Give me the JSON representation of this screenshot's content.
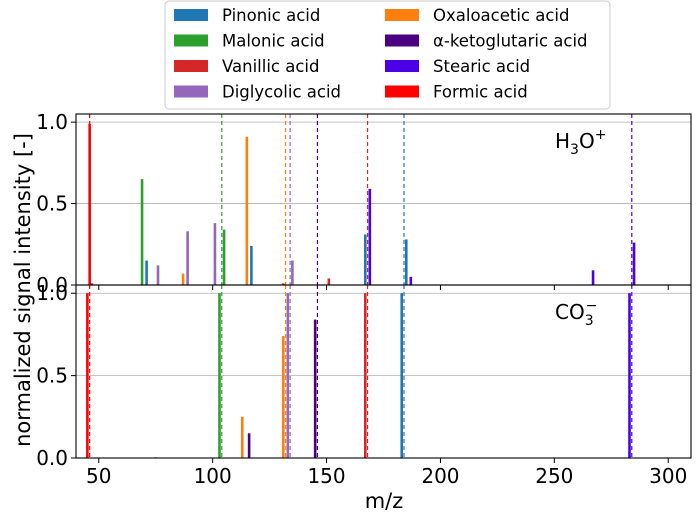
{
  "chart_data": {
    "type": "bar",
    "xlabel": "m/z",
    "ylabel": "normalized signal intensity [-]",
    "xlim": [
      40,
      310
    ],
    "x_ticks": [
      50,
      100,
      150,
      200,
      250,
      300
    ],
    "ylim": [
      0,
      1.05
    ],
    "y_ticks": [
      0.0,
      0.5,
      1.0
    ],
    "y_tick_labels": [
      "0.0",
      "0.5",
      "1.0"
    ],
    "grid": "horizontal",
    "legend": {
      "placement": "top-center",
      "columns": 2
    },
    "series": [
      {
        "name": "Pinonic acid",
        "color": "#1f77b4",
        "marker_mz": 184
      },
      {
        "name": "Malonic acid",
        "color": "#2ca02c",
        "marker_mz": 104
      },
      {
        "name": "Vanillic acid",
        "color": "#d62728",
        "marker_mz": 168
      },
      {
        "name": "Diglycolic acid",
        "color": "#9467bd",
        "marker_mz": 134
      },
      {
        "name": "Oxaloacetic acid",
        "color": "#ff7f0e",
        "marker_mz": 132
      },
      {
        "name": "α-ketoglutaric acid",
        "color": "#4b0082",
        "marker_mz": 146
      },
      {
        "name": "Stearic acid",
        "color": "#4b00e6",
        "marker_mz": 284
      },
      {
        "name": "Formic acid",
        "color": "#ff0000",
        "marker_mz": 46
      }
    ],
    "panels": [
      {
        "reagent_main": "H",
        "reagent_sub": "3",
        "reagent_tail": "O",
        "reagent_sup": "+",
        "bars": [
          {
            "series": "Formic acid",
            "mz": 46,
            "value": 0.99
          },
          {
            "series": "Formic acid",
            "mz": 47,
            "value": 0.01
          },
          {
            "series": "Malonic acid",
            "mz": 69,
            "value": 0.65
          },
          {
            "series": "Pinonic acid",
            "mz": 71,
            "value": 0.15
          },
          {
            "series": "Diglycolic acid",
            "mz": 76,
            "value": 0.12
          },
          {
            "series": "Oxaloacetic acid",
            "mz": 87,
            "value": 0.07
          },
          {
            "series": "Diglycolic acid",
            "mz": 89,
            "value": 0.33
          },
          {
            "series": "Diglycolic acid",
            "mz": 101,
            "value": 0.38
          },
          {
            "series": "Malonic acid",
            "mz": 105,
            "value": 0.34
          },
          {
            "series": "Oxaloacetic acid",
            "mz": 115,
            "value": 0.91
          },
          {
            "series": "Pinonic acid",
            "mz": 117,
            "value": 0.24
          },
          {
            "series": "Vanillic acid",
            "mz": 131,
            "value": 0.01
          },
          {
            "series": "Diglycolic acid",
            "mz": 135,
            "value": 0.15
          },
          {
            "series": "Vanillic acid",
            "mz": 151,
            "value": 0.04
          },
          {
            "series": "Pinonic acid",
            "mz": 167,
            "value": 0.31
          },
          {
            "series": "Stearic acid",
            "mz": 169,
            "value": 0.59
          },
          {
            "series": "Pinonic acid",
            "mz": 185,
            "value": 0.28
          },
          {
            "series": "Stearic acid",
            "mz": 187,
            "value": 0.05
          },
          {
            "series": "Stearic acid",
            "mz": 267,
            "value": 0.09
          },
          {
            "series": "Stearic acid",
            "mz": 285,
            "value": 0.26
          }
        ]
      },
      {
        "reagent_main": "CO",
        "reagent_sub": "3",
        "reagent_tail": "",
        "reagent_sup": "−",
        "bars": [
          {
            "series": "Formic acid",
            "mz": 45,
            "value": 1.0
          },
          {
            "series": "Diglycolic acid",
            "mz": 75,
            "value": 0.005
          },
          {
            "series": "Malonic acid",
            "mz": 103,
            "value": 1.0
          },
          {
            "series": "Oxaloacetic acid",
            "mz": 113,
            "value": 0.25
          },
          {
            "series": "α-ketoglutaric acid",
            "mz": 116,
            "value": 0.15
          },
          {
            "series": "Oxaloacetic acid",
            "mz": 131,
            "value": 0.74
          },
          {
            "series": "Diglycolic acid",
            "mz": 133,
            "value": 1.0
          },
          {
            "series": "α-ketoglutaric acid",
            "mz": 145,
            "value": 0.84
          },
          {
            "series": "Vanillic acid",
            "mz": 167,
            "value": 1.0
          },
          {
            "series": "Pinonic acid",
            "mz": 183,
            "value": 1.0
          },
          {
            "series": "Stearic acid",
            "mz": 283,
            "value": 1.0
          }
        ]
      }
    ]
  }
}
